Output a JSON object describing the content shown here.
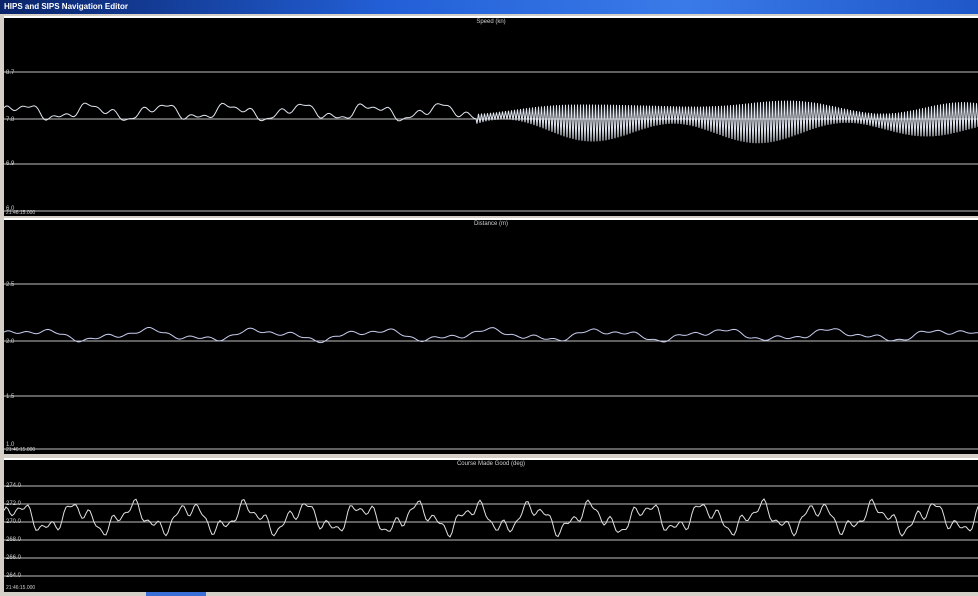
{
  "window": {
    "title": "HIPS and SIPS Navigation Editor",
    "title_prefix": "HIPS"
  },
  "panels": [
    {
      "key": "speed",
      "title": "Speed (kn)",
      "ticks": [
        "8.7",
        "7.8",
        "6.9",
        "6.0"
      ],
      "time_label": "21:46:15.000",
      "trace_color": "#e0e6f0"
    },
    {
      "key": "distance",
      "title": "Distance (m)",
      "ticks": [
        "2.5",
        "2.0",
        "1.5",
        "1.0"
      ],
      "time_label": "21:46:15.000",
      "trace_color": "#c8cef0"
    },
    {
      "key": "cmg",
      "title": "Course Made Good (deg)",
      "ticks": [
        "274.0",
        "272.0",
        "270.0",
        "268.0",
        "266.0",
        "264.0"
      ],
      "time_label": "21:46:15.000",
      "trace_color": "#e0e0e0"
    }
  ],
  "colors": {
    "background": "#000000",
    "gridline": "#bfbfbf",
    "titlebar": "#1f57c8"
  }
}
